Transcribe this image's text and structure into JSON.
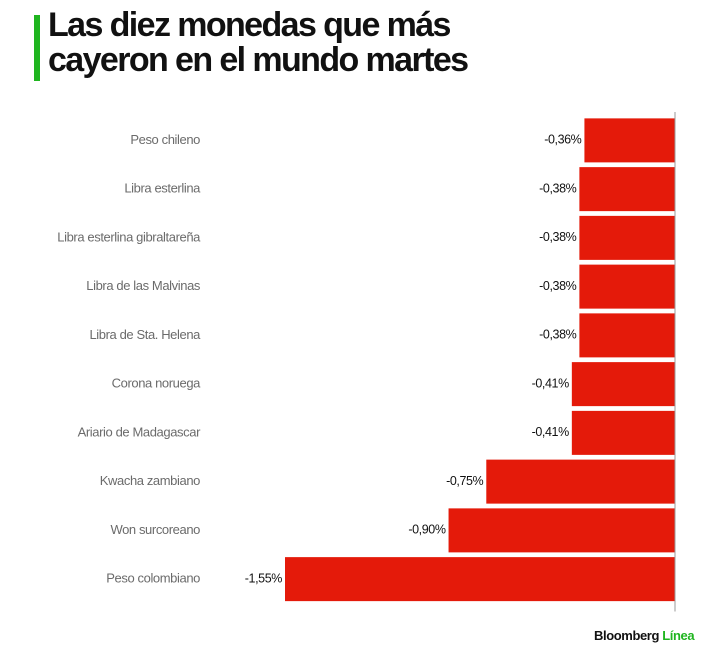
{
  "chart_data": {
    "type": "hbar",
    "title": "Las diez monedas que más cayeron en el mundo martes",
    "categories": [
      "Peso chileno",
      "Libra esterlina",
      "Libra esterlina gibraltareña",
      "Libra de las Malvinas",
      "Libra de Sta. Helena",
      "Corona noruega",
      "Ariario de Madagascar",
      "Kwacha zambiano",
      "Won surcoreano",
      "Peso colombiano"
    ],
    "values": [
      -0.36,
      -0.38,
      -0.38,
      -0.38,
      -0.38,
      -0.41,
      -0.41,
      -0.75,
      -0.9,
      -1.55
    ],
    "value_labels": [
      "-0,36%",
      "-0,38%",
      "-0,38%",
      "-0,38%",
      "-0,38%",
      "-0,41%",
      "-0,41%",
      "-0,75%",
      "-0,90%",
      "-1,55%"
    ],
    "color": "#e41a0a",
    "xlim": [
      -1.55,
      0
    ]
  },
  "footer": {
    "brand": "Bloomberg",
    "product": "Línea"
  }
}
